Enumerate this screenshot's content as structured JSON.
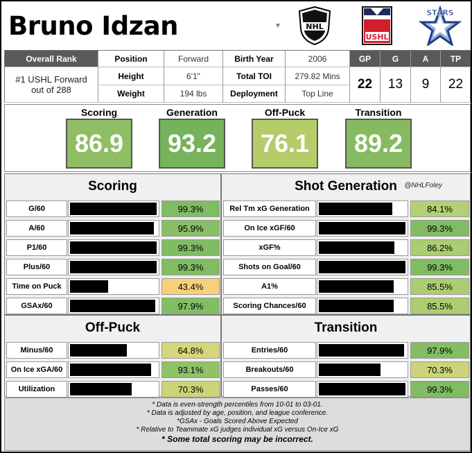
{
  "player": {
    "name": "Bruno Idzan",
    "dropdown_icon": "caret-down"
  },
  "logos": {
    "nhl": "NHL",
    "ushl": "USHL",
    "stars": "STARS"
  },
  "info": {
    "overall_rank_label": "Overall Rank",
    "overall_rank_value": "#1 USHL Forward out of 288",
    "position_label": "Position",
    "position_value": "Forward",
    "height_label": "Height",
    "height_value": "6'1\"",
    "weight_label": "Weight",
    "weight_value": "194 lbs",
    "birth_year_label": "Birth Year",
    "birth_year_value": "2006",
    "total_toi_label": "Total TOI",
    "total_toi_value": "279.82 Mins",
    "deployment_label": "Deployment",
    "deployment_value": "Top Line",
    "stats": [
      {
        "label": "GP",
        "value": "22"
      },
      {
        "label": "G",
        "value": "13"
      },
      {
        "label": "A",
        "value": "9"
      },
      {
        "label": "TP",
        "value": "22"
      }
    ]
  },
  "big_scores": [
    {
      "label": "Scoring",
      "value": "86.9",
      "color": "#8fbe64"
    },
    {
      "label": "Generation",
      "value": "93.2",
      "color": "#76b35c"
    },
    {
      "label": "Off-Puck",
      "value": "76.1",
      "color": "#b4cc6a"
    },
    {
      "label": "Transition",
      "value": "89.2",
      "color": "#86ba60"
    }
  ],
  "sections": {
    "scoring": {
      "title": "Scoring",
      "rows": [
        {
          "label": "G/60",
          "value": "99.3%",
          "pct": 0.993,
          "color": "#80bc62"
        },
        {
          "label": "A/60",
          "value": "95.9%",
          "pct": 0.959,
          "color": "#88bf65"
        },
        {
          "label": "P1/60",
          "value": "99.3%",
          "pct": 0.993,
          "color": "#80bc62"
        },
        {
          "label": "Plus/60",
          "value": "99.3%",
          "pct": 0.993,
          "color": "#80bc62"
        },
        {
          "label": "Time on Puck",
          "value": "43.4%",
          "pct": 0.434,
          "color": "#f9d07a"
        },
        {
          "label": "GSAx/60",
          "value": "97.9%",
          "pct": 0.979,
          "color": "#84be64"
        }
      ]
    },
    "shot_generation": {
      "title": "Shot Generation",
      "credit": "@NHLFoley",
      "rows": [
        {
          "label": "Rel Tm xG Generation",
          "value": "84.1%",
          "pct": 0.841,
          "color": "#b4d074"
        },
        {
          "label": "On Ice xGF/60",
          "value": "99.3%",
          "pct": 0.993,
          "color": "#80bc62"
        },
        {
          "label": "xGF%",
          "value": "86.2%",
          "pct": 0.862,
          "color": "#aacc72"
        },
        {
          "label": "Shots on Goal/60",
          "value": "99.3%",
          "pct": 0.993,
          "color": "#80bc62"
        },
        {
          "label": "A1%",
          "value": "85.5%",
          "pct": 0.855,
          "color": "#aecd72"
        },
        {
          "label": "Scoring Chances/60",
          "value": "85.5%",
          "pct": 0.855,
          "color": "#aecd72"
        }
      ]
    },
    "off_puck": {
      "title": "Off-Puck",
      "rows": [
        {
          "label": "Minus/60",
          "value": "64.8%",
          "pct": 0.648,
          "color": "#d6d67a"
        },
        {
          "label": "On Ice xGA/60",
          "value": "93.1%",
          "pct": 0.931,
          "color": "#90c268"
        },
        {
          "label": "Utilization",
          "value": "70.3%",
          "pct": 0.703,
          "color": "#cbd478"
        }
      ]
    },
    "transition": {
      "title": "Transition",
      "rows": [
        {
          "label": "Entries/60",
          "value": "97.9%",
          "pct": 0.979,
          "color": "#84be64"
        },
        {
          "label": "Breakouts/60",
          "value": "70.3%",
          "pct": 0.703,
          "color": "#cbd478"
        },
        {
          "label": "Passes/60",
          "value": "99.3%",
          "pct": 0.993,
          "color": "#80bc62"
        }
      ]
    }
  },
  "footnotes": [
    "* Data is even-strength percentiles from 10-01 to 03-01.",
    "* Data is adjusted by age, position, and league conference.",
    "*GSAx - Goals Scored Above Expected",
    "* Relative to Teammate xG judges individual xG versus On-Ice xG"
  ],
  "footnote_bold": "* Some total scoring may be incorrect."
}
